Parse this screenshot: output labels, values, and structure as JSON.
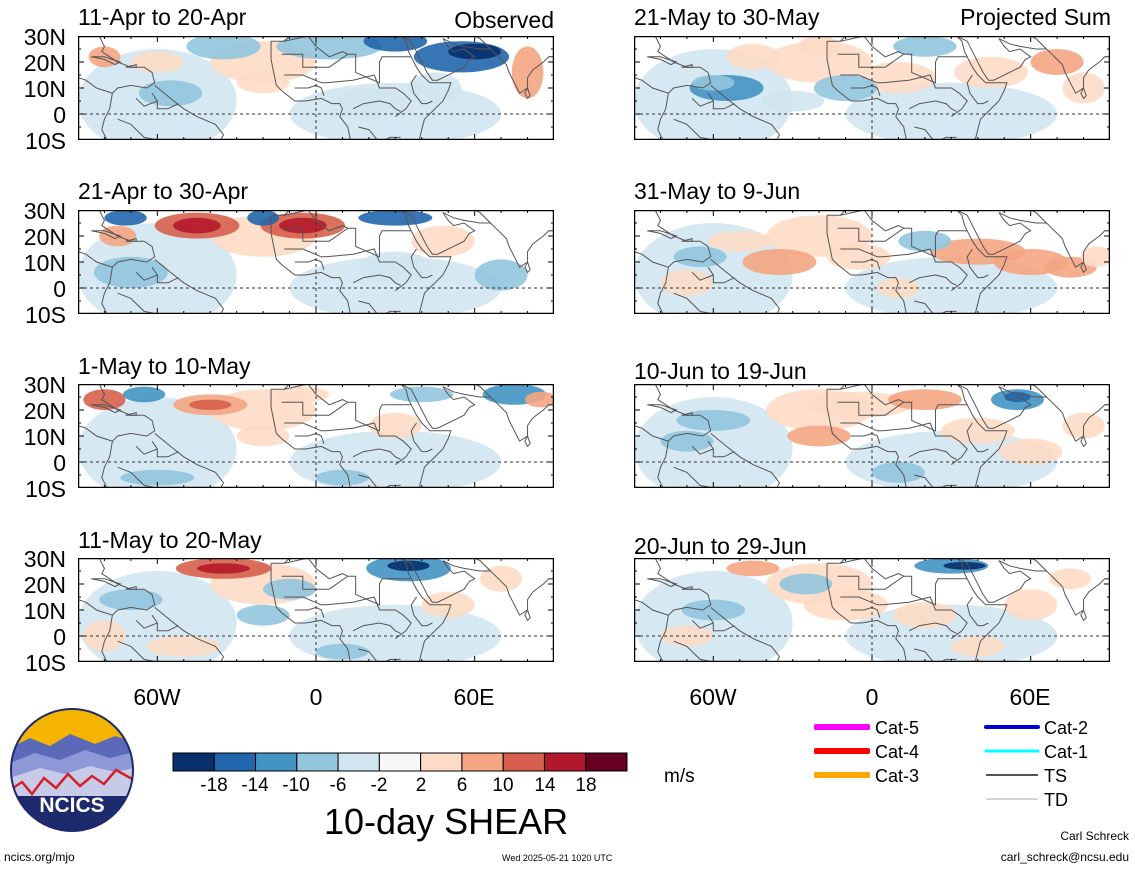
{
  "header": {
    "observed_label": "Observed",
    "projected_label": "Projected Sum"
  },
  "panels": [
    {
      "title": "11-Apr to 20-Apr",
      "column": "observed"
    },
    {
      "title": "21-Apr to 30-Apr",
      "column": "observed"
    },
    {
      "title": "1-May to 10-May",
      "column": "observed"
    },
    {
      "title": "11-May to 20-May",
      "column": "observed"
    },
    {
      "title": "21-May to 30-May",
      "column": "projected"
    },
    {
      "title": "31-May to 9-Jun",
      "column": "projected"
    },
    {
      "title": "10-Jun to 19-Jun",
      "column": "projected"
    },
    {
      "title": "20-Jun to 29-Jun",
      "column": "projected"
    }
  ],
  "lat_labels": [
    "30N",
    "20N",
    "10N",
    "0",
    "10S"
  ],
  "lon_labels": [
    "60W",
    "0",
    "60E"
  ],
  "colorbar": {
    "ticks": [
      "-18",
      "-14",
      "-10",
      "-6",
      "-2",
      "2",
      "6",
      "10",
      "14",
      "18"
    ],
    "colors": [
      "#08306b",
      "#2166ac",
      "#4393c3",
      "#92c5de",
      "#d1e5f0",
      "#f7f7f7",
      "#fddbc7",
      "#f4a582",
      "#d6604d",
      "#b2182b",
      "#67001f"
    ],
    "unit": "m/s",
    "title": "10-day SHEAR"
  },
  "legend": [
    {
      "label": "Cat-5",
      "color": "#ff00ff"
    },
    {
      "label": "Cat-4",
      "color": "#ff0000"
    },
    {
      "label": "Cat-3",
      "color": "#ffa500"
    },
    {
      "label": "Cat-2",
      "color": "#0000dd"
    },
    {
      "label": "Cat-1",
      "color": "#00ffff"
    },
    {
      "label": "TS",
      "color": "#555555"
    },
    {
      "label": "TD",
      "color": "#aaaaaa"
    }
  ],
  "logo": {
    "text": "NCICS"
  },
  "footer": {
    "url": "ncics.org/mjo",
    "timestamp": "Wed 2025-05-21 1020 UTC",
    "author": "Carl Schreck",
    "email": "carl_schreck@ncsu.edu"
  }
}
